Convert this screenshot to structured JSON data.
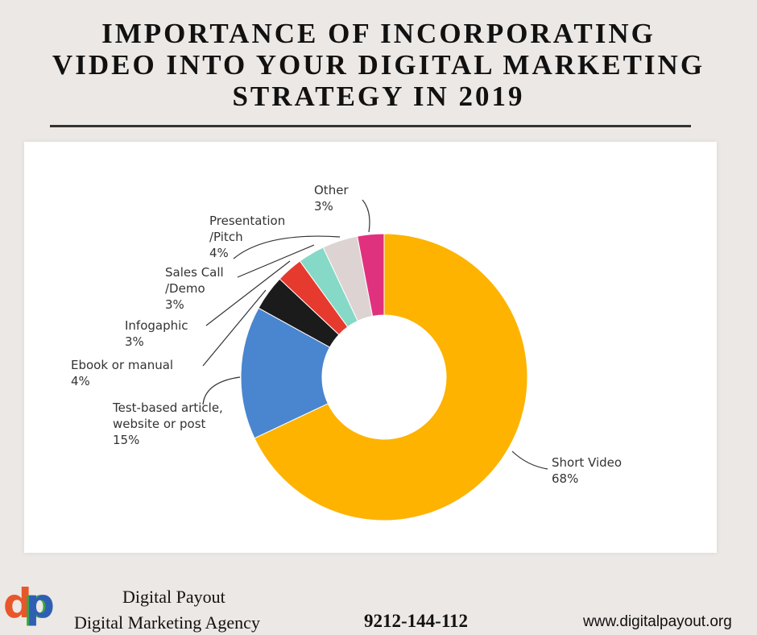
{
  "header": {
    "title_lines": [
      "IMPORTANCE OF INCORPORATING",
      "VIDEO INTO YOUR DIGITAL MARKETING",
      "STRATEGY IN 2019"
    ]
  },
  "chart_data": {
    "type": "donut",
    "categories": [
      "Short Video",
      "Test-based article, website or post",
      "Ebook or manual",
      "Infogaphic",
      "Sales Call /Demo",
      "Presentation /Pitch",
      "Other"
    ],
    "values": [
      68,
      15,
      4,
      3,
      3,
      4,
      3
    ],
    "value_labels": [
      "68%",
      "15%",
      "4%",
      "3%",
      "3%",
      "4%",
      "3%"
    ],
    "colors": [
      "#fdb300",
      "#4a86cf",
      "#1b1b1b",
      "#e63a2e",
      "#86d9c6",
      "#ddd3d3",
      "#e0317e"
    ]
  },
  "footer": {
    "logo_letters": [
      "d",
      "p"
    ],
    "company": "Digital Payout",
    "tagline": "Digital Marketing Agency",
    "phone": "9212-144-112",
    "website": "www.digitalpayout.org"
  }
}
